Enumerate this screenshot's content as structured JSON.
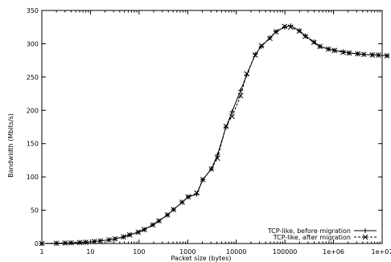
{
  "chart_data": {
    "type": "line",
    "title": "",
    "xlabel": "Packet size (bytes)",
    "ylabel": "Bandwidth (Mbits/s)",
    "xscale": "log",
    "xlim": [
      1,
      10000000
    ],
    "ylim": [
      0,
      350
    ],
    "grid": false,
    "legend_position": "bottom-right",
    "x_ticks": [
      1,
      10,
      100,
      1000,
      10000,
      100000,
      1000000,
      10000000
    ],
    "x_tick_labels": [
      "1",
      "10",
      "100",
      "1000",
      "10000",
      "100000",
      "1e+06",
      "1e+07"
    ],
    "y_ticks": [
      0,
      50,
      100,
      150,
      200,
      250,
      300,
      350
    ],
    "y_tick_labels": [
      "0",
      "50",
      "100",
      "150",
      "200",
      "250",
      "300",
      "350"
    ],
    "series": [
      {
        "name": "TCP-like, before migration",
        "marker": "plus",
        "line_style": "solid",
        "color": "#000000",
        "x": [
          1,
          2,
          3,
          4,
          6,
          8,
          12,
          16,
          24,
          32,
          48,
          64,
          96,
          128,
          192,
          256,
          384,
          512,
          768,
          1024,
          1536,
          2048,
          3072,
          4096,
          6144,
          8192,
          12288,
          16384,
          24576,
          32768,
          49152,
          65536,
          98304,
          131072,
          196608,
          262144,
          393216,
          524288,
          786432,
          1048576,
          1572864,
          2097152,
          3145728,
          4194304,
          6291456,
          8388608,
          12582912
        ],
        "y": [
          0,
          0.4,
          0.7,
          1,
          1.5,
          2,
          3,
          4,
          5.5,
          7,
          10,
          13,
          17,
          21,
          28,
          34,
          43,
          51,
          62,
          70,
          74,
          96,
          112,
          133,
          175,
          198,
          230,
          253,
          284,
          296,
          309,
          318,
          325,
          327,
          320,
          312,
          303,
          296,
          292,
          290,
          288,
          286,
          285,
          284,
          283.5,
          283,
          282
        ]
      },
      {
        "name": "TCP-like, after migration",
        "marker": "cross",
        "line_style": "dashed",
        "color": "#000000",
        "x": [
          1,
          2,
          3,
          4,
          6,
          8,
          12,
          16,
          24,
          32,
          48,
          64,
          96,
          128,
          192,
          256,
          384,
          512,
          768,
          1024,
          1536,
          2048,
          3072,
          4096,
          6144,
          8192,
          12288,
          16384,
          24576,
          32768,
          49152,
          65536,
          98304,
          131072,
          196608,
          262144,
          393216,
          524288,
          786432,
          1048576,
          1572864,
          2097152,
          3145728,
          4194304,
          6291456,
          8388608,
          12582912
        ],
        "y": [
          0,
          0.4,
          0.7,
          1,
          1.5,
          2,
          3,
          4,
          5.5,
          7,
          10,
          13,
          17,
          21,
          28,
          34,
          43,
          51,
          62,
          70,
          76,
          96,
          112,
          128,
          176,
          191,
          222,
          255,
          283,
          297,
          308,
          318,
          326,
          325,
          319,
          311,
          302,
          296,
          292,
          290,
          287,
          286,
          285,
          284,
          283,
          283,
          282
        ]
      }
    ]
  }
}
